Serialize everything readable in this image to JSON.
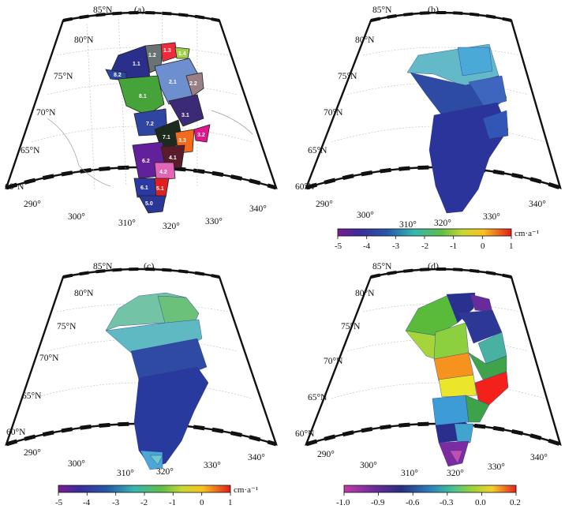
{
  "panels": [
    {
      "id": "a",
      "label": "(a)"
    },
    {
      "id": "b",
      "label": "(b)"
    },
    {
      "id": "c",
      "label": "(c)"
    },
    {
      "id": "d",
      "label": "(d)"
    }
  ],
  "lat_labels": [
    "85°N",
    "80°N",
    "75°N",
    "70°N",
    "65°N",
    "60°N"
  ],
  "lon_labels": [
    "290°",
    "300°",
    "310°",
    "320°",
    "330°",
    "340°"
  ],
  "regions": [
    "1.1",
    "1.2",
    "1.3",
    "1.4",
    "8.2",
    "2.1",
    "2.2",
    "8.1",
    "3.1",
    "7.2",
    "7.1",
    "3.2",
    "3.3",
    "6.2",
    "4.1",
    "4.2",
    "6.1",
    "5.1",
    "5.0"
  ],
  "colorbars": [
    {
      "id": "cb-b",
      "ticks": [
        "-5",
        "-4",
        "-3",
        "-2",
        "-1",
        "0",
        "1"
      ],
      "unit": "cm·a⁻¹"
    },
    {
      "id": "cb-c",
      "ticks": [
        "-5",
        "-4",
        "-3",
        "-2",
        "-1",
        "0",
        "1"
      ],
      "unit": "cm·a⁻¹"
    },
    {
      "id": "cb-d",
      "ticks": [
        "-1.0",
        "-0.9",
        "-0.6",
        "-0.3",
        "0.0",
        "0.2"
      ],
      "unit": ""
    }
  ],
  "colors": {
    "purple": "#5b1c8f",
    "navy": "#24307f",
    "blue": "#2e4d9e",
    "teal": "#5fbac0",
    "lightblue": "#76cfd8",
    "green": "#4caf38",
    "yellow": "#e7e22b",
    "orange": "#f7931e",
    "red": "#f22a1c"
  }
}
